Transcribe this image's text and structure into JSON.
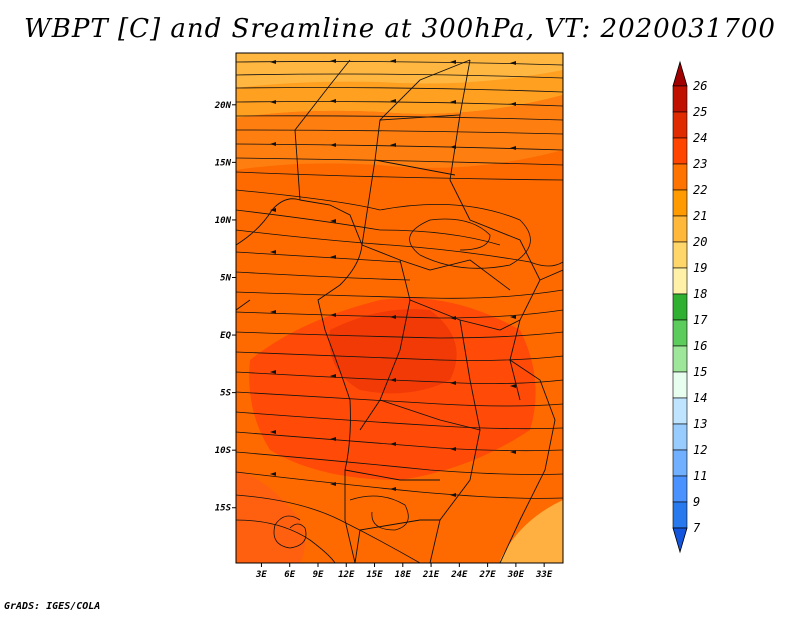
{
  "title": "WBPT [C] and Sreamline at 300hPa, VT: 2020031700",
  "credit": "GrADS: IGES/COLA",
  "map": {
    "variable": "WBPT",
    "units": "C",
    "level": "300hPa",
    "valid_time": "2020031700",
    "lat_labels": [
      "20N",
      "15N",
      "10N",
      "5N",
      "EQ",
      "5S",
      "10S",
      "15S"
    ],
    "lat_values": [
      20,
      15,
      10,
      5,
      0,
      -5,
      -10,
      -15
    ],
    "lon_labels": [
      "3E",
      "6E",
      "9E",
      "12E",
      "15E",
      "18E",
      "21E",
      "24E",
      "27E",
      "30E",
      "33E"
    ],
    "lon_values": [
      3,
      6,
      9,
      12,
      15,
      18,
      21,
      24,
      27,
      30,
      33
    ],
    "lat_range": [
      -19.8,
      24.5
    ],
    "lon_range": [
      0.3,
      35
    ]
  },
  "colorbar": {
    "labels": [
      "26",
      "25",
      "24",
      "23",
      "22",
      "21",
      "20",
      "19",
      "18",
      "17",
      "16",
      "15",
      "14",
      "13",
      "12",
      "11",
      "9",
      "7"
    ],
    "colors": [
      "#a00000",
      "#c01000",
      "#e02a00",
      "#ff4500",
      "#ff7400",
      "#ff9a00",
      "#ffb83a",
      "#ffd66a",
      "#fff2a8",
      "#30b030",
      "#5ccc5c",
      "#9ee79a",
      "#e8fff0",
      "#bfe4ff",
      "#98ccff",
      "#70b0ff",
      "#4a92ff",
      "#2878ee",
      "#1455dd"
    ]
  },
  "colors": {
    "sub_saharan": "#ff6a00",
    "sahel": "#ff7e10",
    "north_band": "#ffa020",
    "congo_basin": "#ff4a08",
    "south_patch": "#ffb040"
  }
}
